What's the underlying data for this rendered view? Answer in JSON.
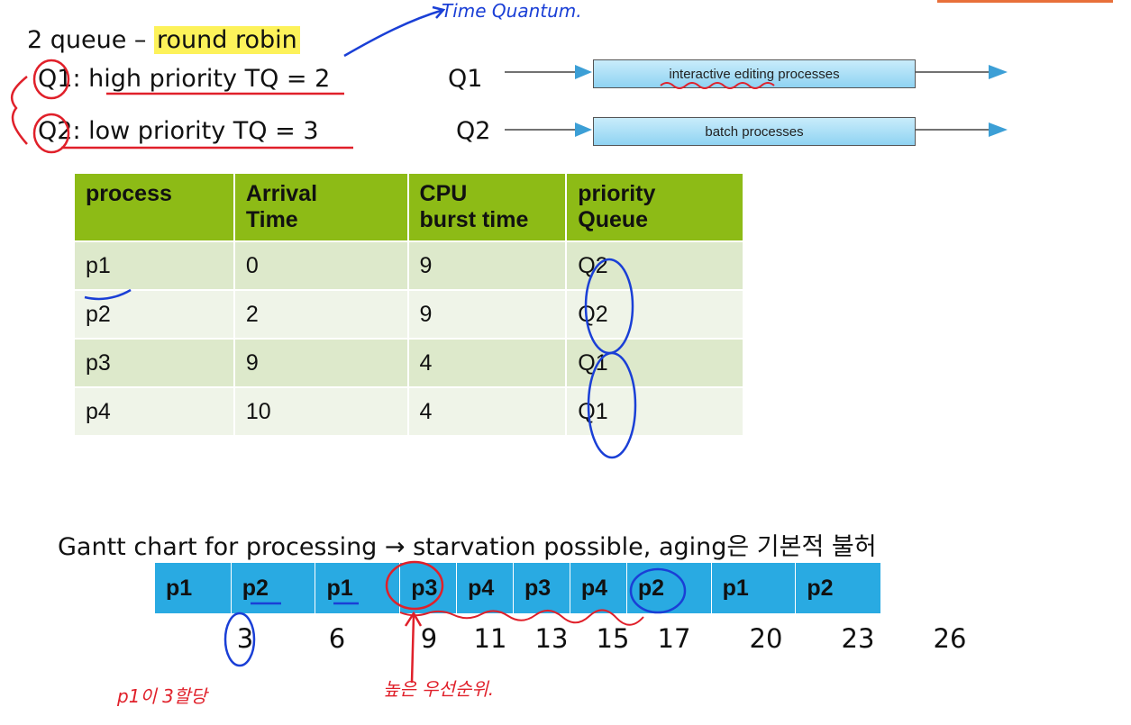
{
  "header": {
    "title_prefix": "2 queue – ",
    "title_highlight": "round robin",
    "annotation_time_quantum": "Time Quantum."
  },
  "queues": [
    {
      "id": "Q1",
      "rest": ": high priority TQ = 2",
      "diagram_label": "Q1",
      "box_label": "interactive editing processes"
    },
    {
      "id": "Q2",
      "rest": ": low priority  TQ = 3",
      "diagram_label": "Q2",
      "box_label": "batch processes"
    }
  ],
  "table": {
    "headers": [
      [
        "process"
      ],
      [
        "Arrival",
        "Time"
      ],
      [
        "CPU",
        "burst time"
      ],
      [
        "priority",
        "Queue"
      ]
    ],
    "rows": [
      [
        "p1",
        "0",
        "9",
        "Q2"
      ],
      [
        "p2",
        "2",
        "9",
        "Q2"
      ],
      [
        "p3",
        "9",
        "4",
        "Q1"
      ],
      [
        "p4",
        "10",
        "4",
        "Q1"
      ]
    ]
  },
  "gantt": {
    "caption": "Gantt chart for processing  → starvation possible, aging은 기본적 불허",
    "segments": [
      {
        "label": "p1",
        "start": 0,
        "end": 3
      },
      {
        "label": "p2",
        "start": 3,
        "end": 6
      },
      {
        "label": "p1",
        "start": 6,
        "end": 9
      },
      {
        "label": "p3",
        "start": 9,
        "end": 11
      },
      {
        "label": "p4",
        "start": 11,
        "end": 13
      },
      {
        "label": "p3",
        "start": 13,
        "end": 15
      },
      {
        "label": "p4",
        "start": 15,
        "end": 17
      },
      {
        "label": "p2",
        "start": 17,
        "end": 20
      },
      {
        "label": "p1",
        "start": 20,
        "end": 23
      },
      {
        "label": "p2",
        "start": 23,
        "end": 26
      }
    ],
    "ticks": [
      "3",
      "6",
      "9",
      "11",
      "13",
      "15",
      "17",
      "20",
      "23",
      "26"
    ]
  },
  "annotations": {
    "p1_note": "p1이 3할당",
    "p3_note": "높은 우선순위."
  },
  "colors": {
    "ink_red": "#e0202a",
    "ink_blue": "#1a3fd6",
    "table_header": "#8dbb16",
    "gantt_bar": "#29aae2",
    "highlight": "#fdf25a"
  }
}
